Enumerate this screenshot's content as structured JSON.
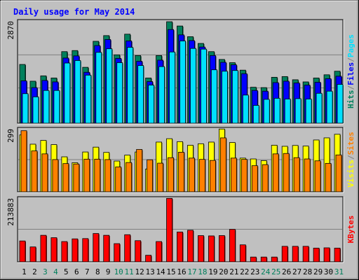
{
  "chart_data": {
    "type": "bar",
    "title": "Daily usage for May 2014",
    "categories": [
      "1",
      "2",
      "3",
      "4",
      "5",
      "6",
      "7",
      "8",
      "9",
      "10",
      "11",
      "12",
      "13",
      "14",
      "15",
      "16",
      "17",
      "18",
      "19",
      "20",
      "21",
      "22",
      "23",
      "24",
      "25",
      "26",
      "27",
      "28",
      "29",
      "30",
      "31"
    ],
    "weekend_days": [
      "3",
      "4",
      "10",
      "11",
      "17",
      "18",
      "24",
      "25",
      "31"
    ],
    "panels": [
      {
        "name": "top",
        "ymax_label": "2870",
        "ymax": 2870,
        "axis_labels": [
          {
            "text": "Hits",
            "color": "#00805c"
          },
          {
            "text": "/",
            "color": "#808080"
          },
          {
            "text": "Files",
            "color": "#0000ff"
          },
          {
            "text": "/",
            "color": "#808080"
          },
          {
            "text": "Pages",
            "color": "#00e0ff"
          }
        ],
        "series": [
          {
            "name": "Hits",
            "color": "#00805c",
            "values": [
              1650,
              1180,
              1330,
              1270,
              2010,
              2040,
              1570,
              2300,
              2460,
              1920,
              2500,
              1900,
              1270,
              1900,
              2850,
              2730,
              2430,
              2240,
              2010,
              1790,
              1700,
              1490,
              1010,
              1000,
              1290,
              1310,
              1220,
              1160,
              1270,
              1360,
              1460
            ]
          },
          {
            "name": "Files",
            "color": "#0000ff",
            "values": [
              1190,
              1000,
              1200,
              1160,
              1830,
              1890,
              1430,
              2180,
              2350,
              1820,
              2310,
              1740,
              1170,
              1770,
              2630,
              2480,
              2320,
              2140,
              1900,
              1710,
              1640,
              1390,
              920,
              900,
              1140,
              1180,
              1130,
              1070,
              1150,
              1250,
              1320
            ]
          },
          {
            "name": "Pages",
            "color": "#00e0ff",
            "values": [
              830,
              740,
              920,
              920,
              1690,
              1760,
              1350,
              1990,
              2090,
              1700,
              2130,
              1620,
              1070,
              1590,
              2000,
              2310,
              2100,
              2080,
              1500,
              1460,
              1480,
              790,
              500,
              670,
              700,
              680,
              690,
              680,
              840,
              900,
              1090
            ]
          }
        ]
      },
      {
        "name": "middle",
        "ymax_label": "299",
        "ymax": 299,
        "axis_labels": [
          {
            "text": "Visits",
            "color": "#ffff00"
          },
          {
            "text": "/",
            "color": "#808080"
          },
          {
            "text": "Sites",
            "color": "#ff8000"
          }
        ],
        "series": [
          {
            "name": "Visits",
            "color": "#ffff00",
            "values": [
              270,
              226,
              244,
              224,
              166,
              138,
              189,
              212,
              187,
              146,
              174,
              189,
              108,
              236,
              252,
              238,
              221,
              228,
              236,
              298,
              234,
              160,
              156,
              148,
              221,
              216,
              220,
              217,
              246,
              256,
              273
            ]
          },
          {
            "name": "Sites",
            "color": "#ff8000",
            "values": [
              290,
              194,
              180,
              153,
              134,
              132,
              155,
              155,
              153,
              118,
              139,
              201,
              152,
              136,
              162,
              188,
              160,
              154,
              149,
              256,
              160,
              154,
              124,
              129,
              180,
              182,
              162,
              156,
              147,
              135,
              175
            ]
          }
        ]
      },
      {
        "name": "bottom",
        "ymax_label": "213883",
        "ymax": 213883,
        "axis_labels": [
          {
            "text": "KBytes",
            "color": "#ff0000"
          }
        ],
        "series": [
          {
            "name": "KBytes",
            "color": "#ff0000",
            "values": [
              70000,
              50000,
              89000,
              81000,
              68000,
              77000,
              78000,
              95000,
              89000,
              61000,
              91000,
              71000,
              22000,
              68000,
              213000,
              100000,
              106000,
              88000,
              87000,
              88000,
              109000,
              57000,
              16000,
              16000,
              16000,
              52000,
              52000,
              52000,
              46000,
              47000,
              46000
            ]
          }
        ]
      }
    ]
  }
}
